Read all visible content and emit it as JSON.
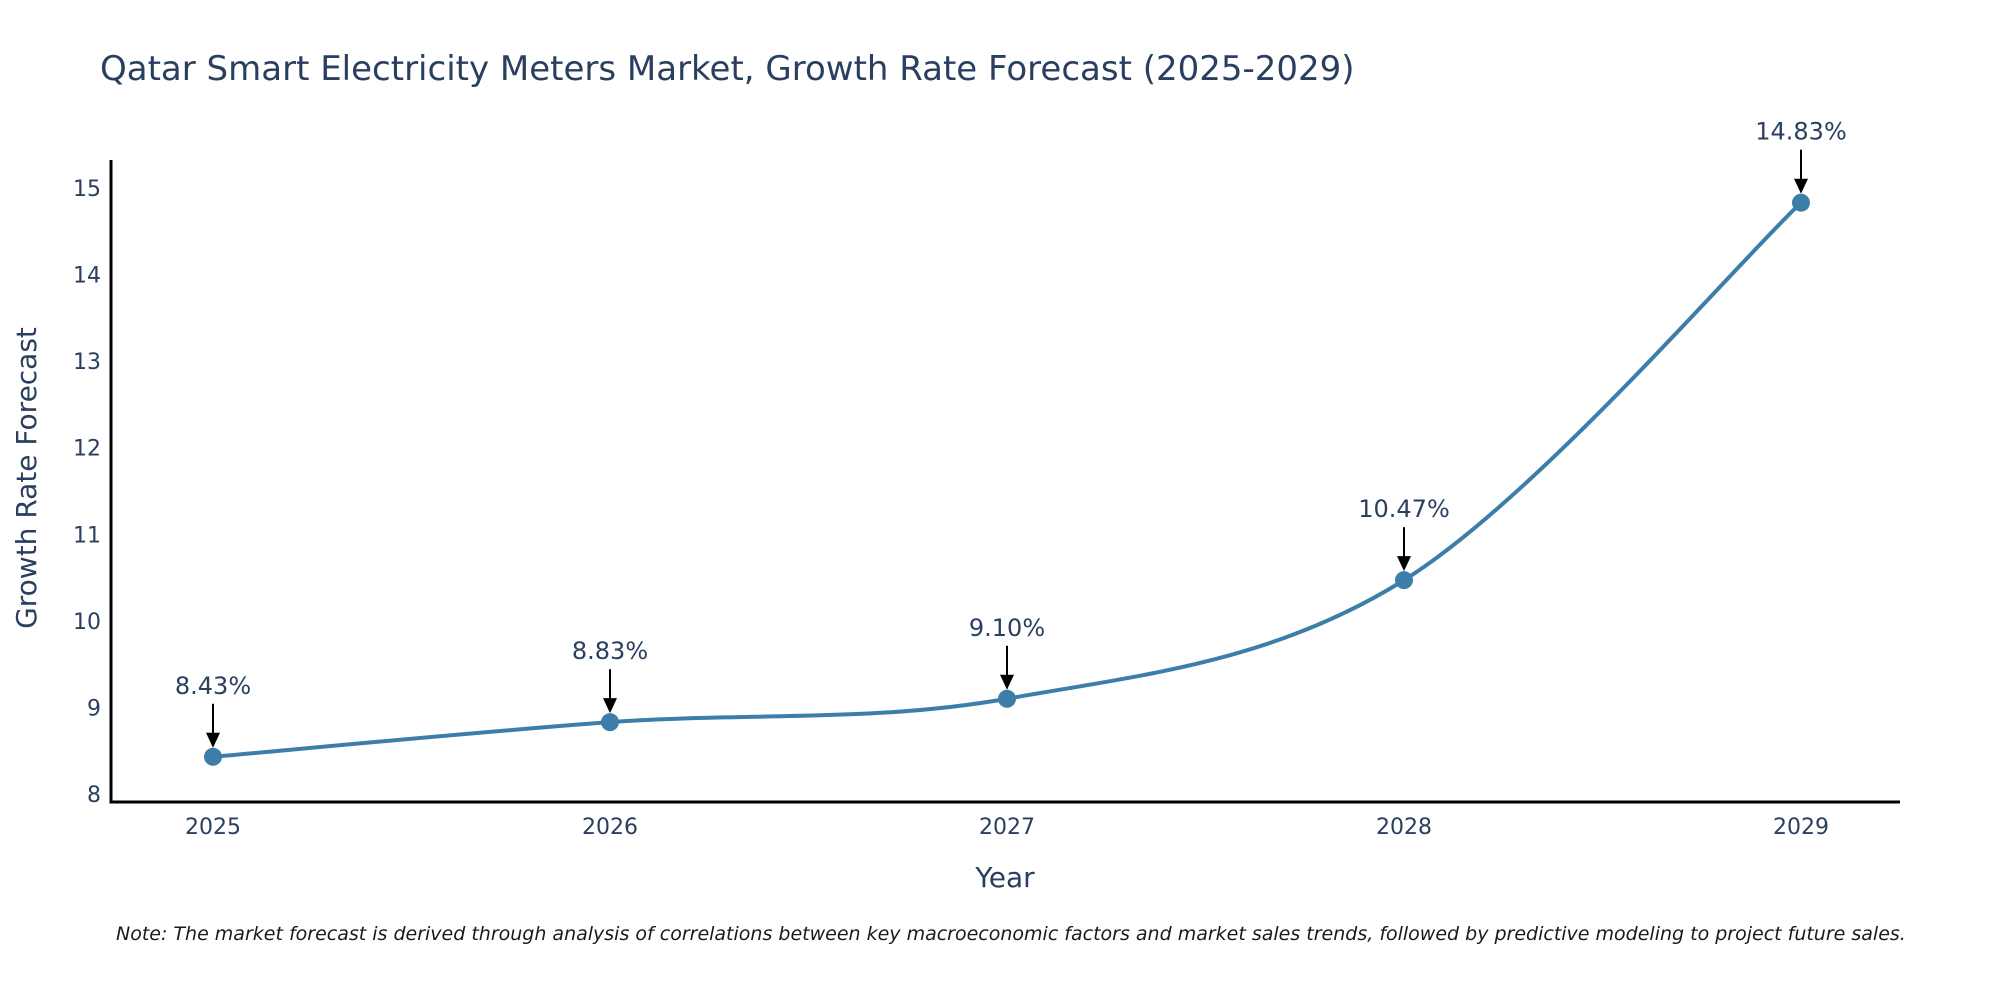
{
  "chart_data": {
    "type": "line",
    "title": "Qatar Smart Electricity Meters Market, Growth Rate Forecast (2025-2029)",
    "xlabel": "Year",
    "ylabel": "Growth Rate Forecast",
    "categories": [
      "2025",
      "2026",
      "2027",
      "2028",
      "2029"
    ],
    "values": [
      8.43,
      8.83,
      9.1,
      10.47,
      14.83
    ],
    "data_labels": [
      "8.43%",
      "8.83%",
      "9.10%",
      "10.47%",
      "14.83%"
    ],
    "ylim": [
      7.9,
      15.3
    ],
    "yticks": [
      8,
      9,
      10,
      11,
      12,
      13,
      14,
      15
    ],
    "grid": false,
    "line_color": "#3d7ea9",
    "marker_color": "#3d7ea9",
    "arrow_color": "#000000"
  },
  "note": "Note: The market forecast is derived through analysis of correlations between key macroeconomic factors and market sales trends, followed by predictive modeling to project future sales."
}
